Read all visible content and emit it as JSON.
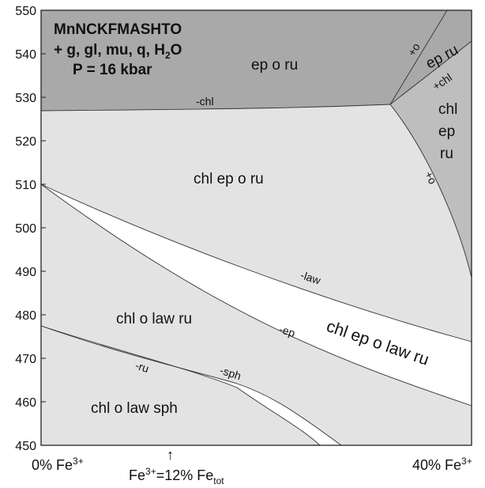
{
  "header": {
    "system": "MnNCKFMASHTO",
    "phases_line_a": "+ g, gl, mu, q, H",
    "phases_sub": "2",
    "phases_line_b": "O",
    "pressure": "P = 16 kbar"
  },
  "y_axis": {
    "min": 450,
    "max": 550,
    "ticks": [
      "450",
      "460",
      "470",
      "480",
      "490",
      "500",
      "510",
      "520",
      "530",
      "540",
      "550"
    ]
  },
  "x_axis": {
    "left_label": "0% Fe",
    "left_sup": "3+",
    "right_label": "40% Fe",
    "right_sup": "3+",
    "marker_arrow": "↑",
    "marker_a": "Fe",
    "marker_a_sup": "3+",
    "marker_b": "=12% Fe",
    "marker_b_sub": "tot"
  },
  "fields": {
    "ep_o_ru_top": "ep o ru",
    "ep_ru": "ep ru",
    "chl_1": "chl",
    "chl_2": "ep",
    "chl_3": "ru",
    "chl_ep_o_ru": "chl ep o ru",
    "chl_o_law_ru": "chl o law ru",
    "chl_ep_o_law_ru": "chl ep o law ru",
    "chl_o_law_sph": "chl o law sph"
  },
  "reactions": {
    "minus_chl": "-chl",
    "plus_o_top": "+o",
    "plus_chl": "+chl",
    "plus_o_right": "+o",
    "minus_law": "-law",
    "minus_ep": "-ep",
    "minus_ru": "-ru",
    "minus_sph": "-sph"
  },
  "colors": {
    "dark_field": "#a9a9a9",
    "medium_field": "#bebebe",
    "light_field": "#e3e3e3",
    "open_field": "#ffffff",
    "line": "#333333"
  }
}
